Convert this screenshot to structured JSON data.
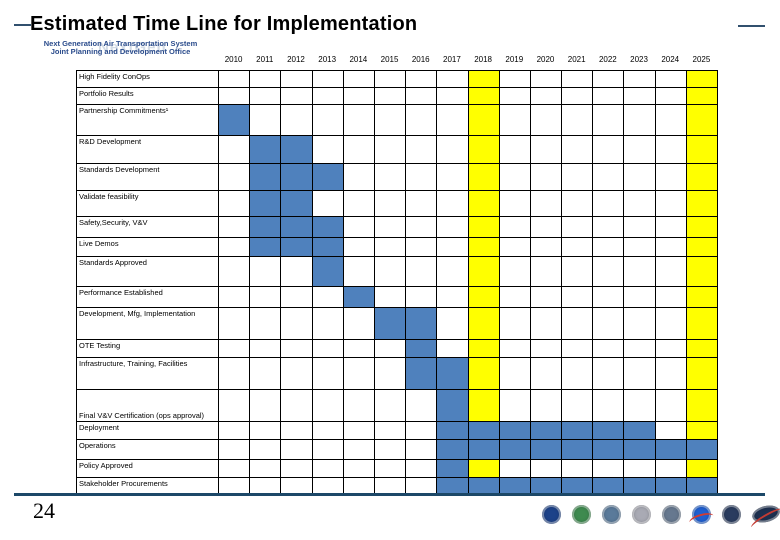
{
  "title": "Estimated Time Line for Implementation",
  "logo": {
    "line1": "Next Generation Air Transportation System",
    "line2": "Joint Planning and Development Office",
    "watermark": "NextGen"
  },
  "page_number": "24",
  "chart_data": {
    "type": "gantt",
    "title": "Estimated Time Line for Implementation",
    "years": [
      2010,
      2011,
      2012,
      2013,
      2014,
      2015,
      2016,
      2017,
      2018,
      2019,
      2020,
      2021,
      2022,
      2023,
      2024,
      2025
    ],
    "highlight_years": [
      2018,
      2025
    ],
    "rows": [
      {
        "label": "High Fidelity ConOps",
        "bars": []
      },
      {
        "label": "Portfolio Results",
        "bars": []
      },
      {
        "label": "Partnership Commitments¹",
        "bars": [
          [
            2010,
            2010
          ]
        ]
      },
      {
        "label": "R&D Development",
        "bars": [
          [
            2011,
            2012
          ]
        ]
      },
      {
        "label": "Standards Development",
        "bars": [
          [
            2011,
            2013
          ]
        ]
      },
      {
        "label": "Validate feasibility",
        "bars": [
          [
            2011,
            2012
          ]
        ]
      },
      {
        "label": "Safety,Security, V&V",
        "bars": [
          [
            2011,
            2013
          ]
        ]
      },
      {
        "label": "Live Demos",
        "bars": [
          [
            2011,
            2013
          ]
        ]
      },
      {
        "label": "Standards Approved",
        "bars": [
          [
            2013,
            2013
          ]
        ]
      },
      {
        "label": "Performance Established",
        "bars": [
          [
            2014,
            2014
          ]
        ]
      },
      {
        "label": "Development, Mfg, Implementation",
        "bars": [
          [
            2015,
            2016
          ]
        ]
      },
      {
        "label": "OTE Testing",
        "bars": [
          [
            2016,
            2016
          ]
        ]
      },
      {
        "label": "Infrastructure, Training, Facilities",
        "bars": [
          [
            2016,
            2017
          ]
        ]
      },
      {
        "label": "Final V&V Certification (ops approval)",
        "bars": [
          [
            2017,
            2017
          ]
        ],
        "label_valign": "bottom"
      },
      {
        "label": "Deployment",
        "bars": [
          [
            2017,
            2023
          ]
        ]
      },
      {
        "label": "Operations",
        "bars": [
          [
            2017,
            2025
          ]
        ]
      },
      {
        "label": "Policy Approved",
        "bars": [
          [
            2017,
            2017
          ]
        ]
      },
      {
        "label": "Stakeholder Procurements",
        "bars": [
          [
            2017,
            2025
          ]
        ]
      }
    ],
    "colors": {
      "bar": "#4f81bd",
      "highlight": "#ffff00",
      "grid": "#000000",
      "baseline": "#1c4868"
    },
    "legend_position": "none",
    "grid": true
  },
  "footer_logos": [
    {
      "name": "dot-seal-icon",
      "color": "#1d4289"
    },
    {
      "name": "epa-seal-icon",
      "color": "#3e8a4f"
    },
    {
      "name": "faa-seal-icon",
      "color": "#5a7a9a"
    },
    {
      "name": "dod-seal-icon",
      "color": "#a9aab4"
    },
    {
      "name": "doc-seal-icon",
      "color": "#66788f"
    },
    {
      "name": "nasa-seal-icon",
      "color": "#1f5fd0",
      "accent": "#d23c30"
    },
    {
      "name": "dhs-seal-icon",
      "color": "#2a3c5f"
    },
    {
      "name": "jpdo-nextgen-icon",
      "color": "#1d3050",
      "accent": "#c23b33",
      "shape": "ellipse"
    }
  ]
}
